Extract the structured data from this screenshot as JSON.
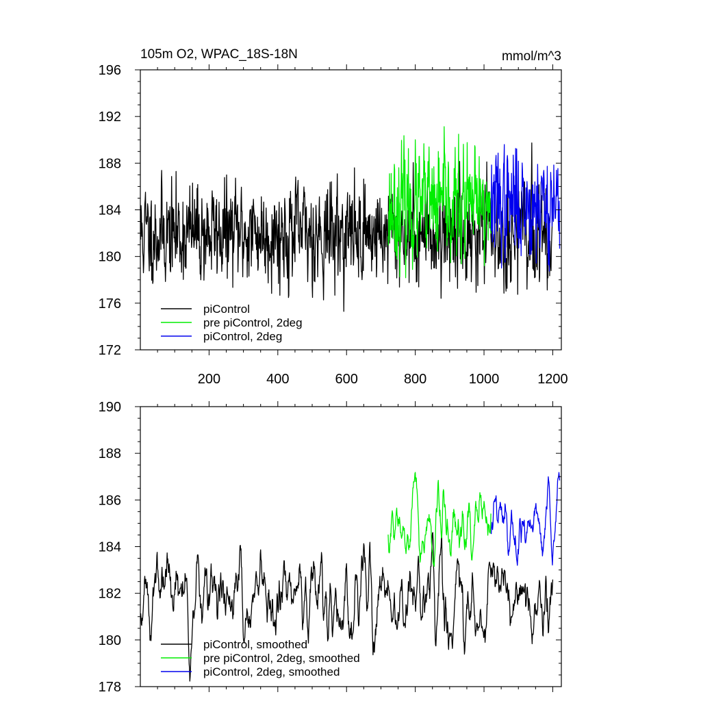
{
  "chart_data": [
    {
      "type": "line",
      "title_left": "105m O2, WPAC_18S-18N",
      "title_right": "mmol/m^3",
      "xlim": [
        0,
        1225
      ],
      "ylim": [
        172,
        196
      ],
      "x_ticks": [
        200,
        400,
        600,
        800,
        1000,
        1200
      ],
      "y_ticks": [
        172,
        176,
        180,
        184,
        188,
        192,
        196
      ],
      "grid": false,
      "legend_position": "bottom-left",
      "series": [
        {
          "name": "piControl",
          "color": "#000000",
          "x_start": 1,
          "x_end": 1200,
          "mean": 182.0,
          "amplitude": 3.2,
          "seed": 11
        },
        {
          "name": "pre piControl, 2deg",
          "color": "#00ee00",
          "x_start": 721,
          "x_end": 1020,
          "mean": 184.2,
          "amplitude": 3.6,
          "seed": 23
        },
        {
          "name": "piControl, 2deg",
          "color": "#0000ee",
          "x_start": 1021,
          "x_end": 1220,
          "mean": 184.6,
          "amplitude": 3.5,
          "seed": 37
        }
      ]
    },
    {
      "type": "line",
      "xlim": [
        0,
        1225
      ],
      "ylim": [
        178,
        190
      ],
      "x_ticks": [
        200,
        400,
        600,
        800,
        1000,
        1200
      ],
      "y_ticks": [
        178,
        180,
        182,
        184,
        186,
        188,
        190
      ],
      "grid": false,
      "legend_position": "bottom-left",
      "series": [
        {
          "name": "piControl, smoothed",
          "color": "#000000",
          "x_start": 1,
          "x_end": 1200,
          "mean": 181.8,
          "amplitude": 1.3,
          "seed": 51
        },
        {
          "name": "pre piControl, 2deg, smoothed",
          "color": "#00ee00",
          "x_start": 721,
          "x_end": 1020,
          "mean": 184.9,
          "amplitude": 1.1,
          "seed": 67
        },
        {
          "name": "piControl, 2deg, smoothed",
          "color": "#0000ee",
          "x_start": 1021,
          "x_end": 1220,
          "mean": 185.0,
          "amplitude": 1.1,
          "seed": 79
        }
      ]
    }
  ]
}
